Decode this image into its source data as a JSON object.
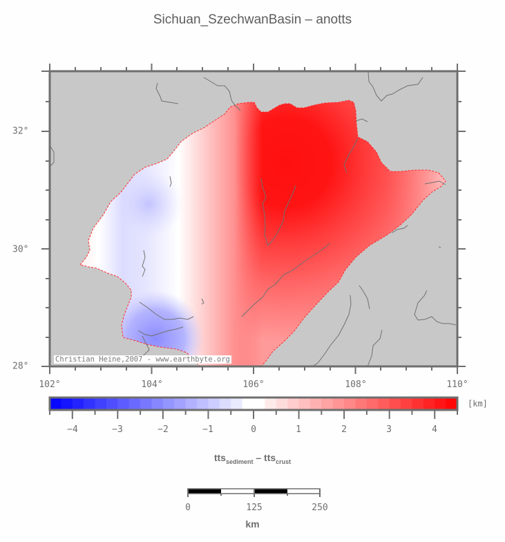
{
  "title": "Sichuan_SzechwanBasin – anotts",
  "map": {
    "region": "Sichuan Basin",
    "background_color": "#c8c8c8",
    "frame_color": "#6e6e6e",
    "x_axis": {
      "labels": [
        "102°",
        "104°",
        "106°",
        "108°",
        "110°"
      ],
      "values": [
        102,
        104,
        106,
        108,
        110
      ]
    },
    "y_axis": {
      "labels": [
        "32°",
        "30°",
        "28°"
      ],
      "values": [
        32,
        30,
        28
      ]
    },
    "credit": "Christian Heine,2007 - www.earthbyte.org"
  },
  "colorbar": {
    "unit": "[km]",
    "tick_labels": [
      "−4",
      "−3",
      "−2",
      "−1",
      "0",
      "1",
      "2",
      "3",
      "4"
    ],
    "tick_values": [
      -4,
      -3,
      -2,
      -1,
      0,
      1,
      2,
      3,
      4
    ],
    "range": [
      -4.5,
      4.5
    ],
    "step": 0.25,
    "min_color": "#0000ff",
    "mid_color": "#ffffff",
    "max_color": "#ff0000"
  },
  "variable": {
    "base_left": "tts",
    "sub_left": "sediment",
    "operator": "–",
    "base_right": "tts",
    "sub_right": "crust"
  },
  "scalebar": {
    "labels": [
      "0",
      "125",
      "250"
    ],
    "unit": "km"
  }
}
